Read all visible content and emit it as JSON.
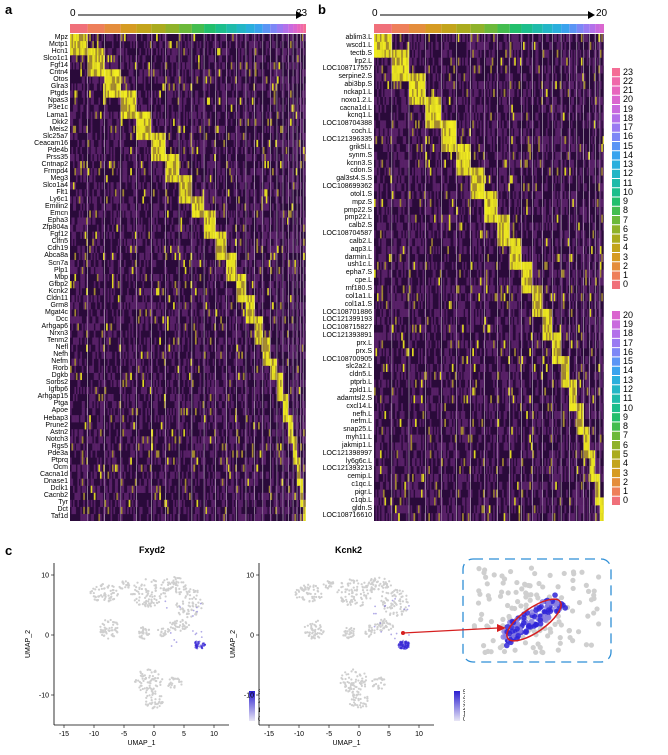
{
  "panel_a": {
    "letter": "a",
    "arrow_start": "0",
    "arrow_end": "23",
    "genes": [
      "Mpz",
      "Mctp1",
      "Hcn1",
      "Slco1c1",
      "Fgf14",
      "Cntn4",
      "Otos",
      "Glra3",
      "Ptgds",
      "Npas3",
      "P3e1c",
      "Lama1",
      "Dkk2",
      "Meis2",
      "Slc25a7",
      "Ceacam16",
      "Pde4b",
      "Prss35",
      "Cntnap2",
      "Frmpd4",
      "Meg3",
      "Slco1a4",
      "Flt1",
      "Ly6c1",
      "Emilin2",
      "Emcn",
      "Epha3",
      "Zfp804a",
      "Fgf12",
      "Clfn5",
      "Cdh19",
      "Abca8a",
      "Scn7a",
      "Plp1",
      "Mbp",
      "Gfbp2",
      "Kcnk2",
      "Cldn11",
      "Grm8",
      "Mgat4c",
      "Dcc",
      "Arhgap6",
      "Nrxn3",
      "Tenm2",
      "Nefl",
      "Nefh",
      "Nefm",
      "Rorb",
      "Dgkb",
      "Sorbs2",
      "Igfbp6",
      "Arhgap15",
      "Ptga",
      "Apoe",
      "Hebap3",
      "Prune2",
      "Astn2",
      "Notch3",
      "Rgs5",
      "Pde3a",
      "Ptprq",
      "Ocm",
      "Cacna1d",
      "Dnase1",
      "Dclk1",
      "Cacnb2",
      "Tyr",
      "Dct",
      "Taf1d"
    ]
  },
  "panel_b": {
    "letter": "b",
    "arrow_start": "0",
    "arrow_end": "20",
    "genes": [
      "ablim3.L",
      "wscd1.L",
      "tectb.S",
      "lrp2.L",
      "LOC108717557",
      "serpine2.S",
      "abi3bp.S",
      "nckap1.L",
      "noxo1.2.L",
      "cacna1d.L",
      "kcnq1.L",
      "LOC108704388",
      "coch.L",
      "LOC121396335",
      "grik5l.L",
      "synm.S",
      "kcnn3.S",
      "cdon.S",
      "gal3st4.S.S",
      "LOC108699362",
      "otol1.S",
      "mpz.S",
      "pmp22.S",
      "pmp22.L",
      "calb2.S",
      "LOC108704587",
      "calb2.L",
      "aqp3.L",
      "darmin.L",
      "ush1c.L",
      "epha7.S",
      "cpe.L",
      "rnf180.S",
      "col1a1.L",
      "col1a1.S",
      "LOC108701886",
      "LOC121399193",
      "LOC108715827",
      "LOC121393891",
      "prx.L",
      "prx.S",
      "LOC108700905",
      "slc2a2.L",
      "cldn5.L",
      "ptprb.L",
      "zpld1.L",
      "adamtsl2.S",
      "cxcl14.L",
      "nefh.L",
      "nefm.L",
      "snap25.L",
      "myh11.L",
      "jakmip1.L",
      "LOC121398997",
      "ly6g6c.L",
      "LOC121393213",
      "cemip.L",
      "c1qc.L",
      "pigr.L",
      "c1qb.L",
      "gldn.S",
      "LOC108716610"
    ],
    "legend_top": [
      "23",
      "22",
      "21",
      "20",
      "19",
      "18",
      "17",
      "16",
      "15",
      "14",
      "13",
      "12",
      "11",
      "10",
      "9",
      "8",
      "7",
      "6",
      "5",
      "4",
      "3",
      "2",
      "1",
      "0"
    ],
    "legend_bottom": [
      "20",
      "19",
      "18",
      "17",
      "16",
      "15",
      "14",
      "13",
      "12",
      "11",
      "10",
      "9",
      "8",
      "7",
      "6",
      "5",
      "4",
      "3",
      "2",
      "1",
      "0"
    ]
  },
  "panel_c": {
    "letter": "c",
    "plots": [
      {
        "title": "Fxyd2",
        "xlabel": "UMAP_1",
        "ylabel": "UMAP_2",
        "xticks": [
          "-15",
          "-10",
          "-5",
          "0",
          "5",
          "10"
        ],
        "yticks": [
          "10",
          "0",
          "-10"
        ],
        "colorbar": [
          "3",
          "2",
          "1",
          "0"
        ]
      },
      {
        "title": "Kcnk2",
        "xlabel": "UMAP_1",
        "ylabel": "UMAP_2",
        "xticks": [
          "-15",
          "-10",
          "-5",
          "0",
          "5",
          "10"
        ],
        "yticks": [
          "10",
          "0",
          "-10"
        ],
        "colorbar": [
          "5",
          "4",
          "3",
          "2",
          "1",
          "0"
        ]
      }
    ]
  },
  "colors": {
    "heat_low": "#2a0a3a",
    "heat_mid": "#6b2a7a",
    "heat_high": "#f5f020",
    "umap_gray": "#cfcfcf",
    "umap_expr": "#3b2bd6",
    "zoom_border": "#2f8fd6",
    "highlight_ellipse": "#d61f1f",
    "arrow": "#d61f1f"
  }
}
